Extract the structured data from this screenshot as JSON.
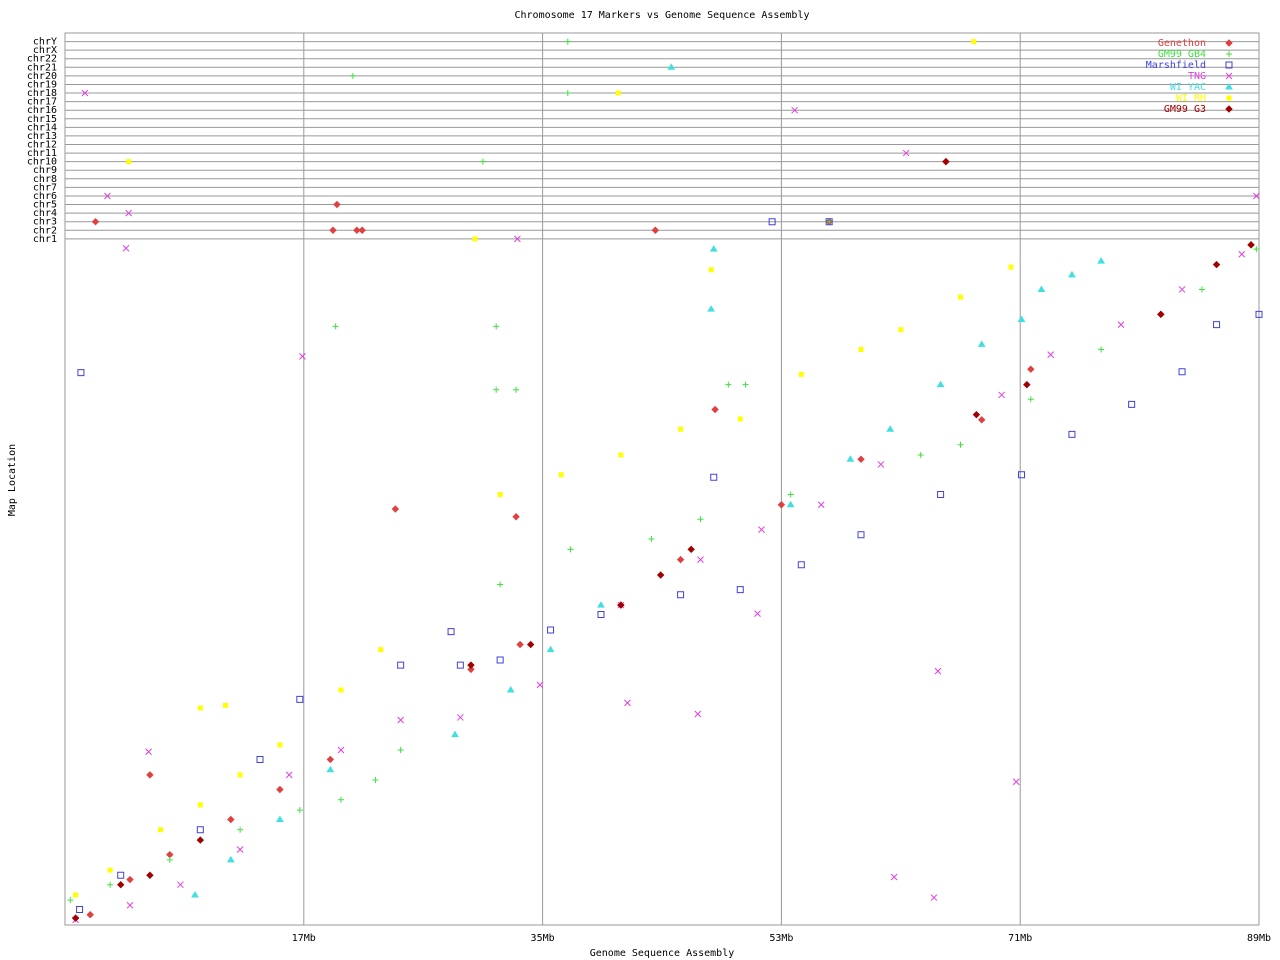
{
  "chart_data": {
    "type": "scatter",
    "title": "Chromosome 17 Markers vs Genome Sequence Assembly",
    "x_label": "Genome Sequence Assembly",
    "y_label": "Map Location",
    "xlim": [
      -1,
      89
    ],
    "ylim": [
      0,
      104
    ],
    "xticks": [
      {
        "value": 17,
        "label": "17Mb"
      },
      {
        "value": 35,
        "label": "35Mb"
      },
      {
        "value": 53,
        "label": "53Mb"
      },
      {
        "value": 71,
        "label": "71Mb"
      },
      {
        "value": 89,
        "label": "89Mb"
      }
    ],
    "yticks": [
      {
        "value": 80,
        "label": "chr1"
      },
      {
        "value": 81,
        "label": "chr2"
      },
      {
        "value": 82,
        "label": "chr3"
      },
      {
        "value": 83,
        "label": "chr4"
      },
      {
        "value": 84,
        "label": "chr5"
      },
      {
        "value": 85,
        "label": "chr6"
      },
      {
        "value": 86,
        "label": "chr7"
      },
      {
        "value": 87,
        "label": "chr8"
      },
      {
        "value": 88,
        "label": "chr9"
      },
      {
        "value": 89,
        "label": "chr10"
      },
      {
        "value": 90,
        "label": "chr11"
      },
      {
        "value": 91,
        "label": "chr12"
      },
      {
        "value": 92,
        "label": "chr13"
      },
      {
        "value": 93,
        "label": "chr14"
      },
      {
        "value": 94,
        "label": "chr15"
      },
      {
        "value": 95,
        "label": "chr16"
      },
      {
        "value": 96,
        "label": "chr17"
      },
      {
        "value": 97,
        "label": "chr18"
      },
      {
        "value": 98,
        "label": "chr19"
      },
      {
        "value": 99,
        "label": "chr20"
      },
      {
        "value": 100,
        "label": "chr21"
      },
      {
        "value": 101,
        "label": "chr22"
      },
      {
        "value": 102,
        "label": "chrX"
      },
      {
        "value": 103,
        "label": "chrY"
      }
    ],
    "grid": true,
    "legend": "upper right",
    "series": [
      {
        "name": "Genethon",
        "color": "#e04040",
        "marker": "diamond",
        "x": [
          1.3,
          19.5,
          19.2,
          21,
          21.4,
          43.5,
          56.6,
          65.4,
          0.9,
          3.9,
          6.9,
          11.5,
          15.2,
          19,
          29.6,
          33.3,
          40.9,
          45.4,
          53,
          59,
          68.1,
          71.8,
          81.6,
          88.4,
          5.4,
          23.9,
          33,
          48
        ],
        "values": [
          82,
          84,
          81,
          81,
          81,
          81,
          82,
          89,
          1.2,
          5.3,
          8.2,
          12.3,
          15.8,
          19.3,
          29.8,
          32.7,
          37.3,
          42.6,
          49,
          54.3,
          58.9,
          64.8,
          71.2,
          79.3,
          17.5,
          48.5,
          47.6,
          60.1
        ]
      },
      {
        "name": "GM99 GB4",
        "color": "#40e040",
        "marker": "plus",
        "x": [
          36.9,
          20.7,
          36.9,
          30.5,
          56.6,
          -0.6,
          2.4,
          6.9,
          12.2,
          16.7,
          19.8,
          22.4,
          24.3,
          31.8,
          37.1,
          43.2,
          46.9,
          53.7,
          63.5,
          66.5,
          71.8,
          77.1,
          84.7,
          88.8,
          19.4,
          31.5,
          31.5,
          33,
          49,
          50.3
        ],
        "values": [
          103,
          99,
          97,
          89,
          82,
          2.9,
          4.7,
          7.6,
          11.1,
          13.4,
          14.6,
          16.9,
          20.4,
          39.7,
          43.8,
          45,
          47.3,
          50.2,
          54.8,
          56,
          61.3,
          67.1,
          74.1,
          78.8,
          69.8,
          69.8,
          62.4,
          62.4,
          63,
          63
        ]
      },
      {
        "name": "Marshfield",
        "color": "#4040e0",
        "marker": "square",
        "x": [
          52.3,
          56.6,
          0.1,
          3.2,
          9.2,
          13.7,
          16.7,
          24.3,
          28.8,
          31.8,
          35.6,
          39.4,
          45.4,
          49.9,
          54.5,
          59,
          65,
          71.1,
          74.9,
          79.4,
          83.2,
          85.8,
          89,
          0.2,
          47.9,
          28.1
        ],
        "values": [
          82,
          82,
          1.8,
          5.8,
          11.1,
          19.3,
          26.3,
          30.3,
          30.3,
          30.9,
          34.4,
          36.2,
          38.5,
          39.1,
          42,
          45.5,
          50.2,
          52.5,
          57.2,
          60.7,
          64.5,
          70,
          71.2,
          64.4,
          52.2,
          34.2
        ]
      },
      {
        "name": "TNG",
        "color": "#e040e0",
        "marker": "x",
        "x": [
          0.5,
          2.2,
          3.8,
          3.6,
          33.1,
          54,
          62.4,
          88.8,
          -0.2,
          3.9,
          7.7,
          12.2,
          15.9,
          19.8,
          24.3,
          28.8,
          34.8,
          40.9,
          46.9,
          51.5,
          56,
          60.5,
          69.6,
          73.3,
          78.6,
          83.2,
          87.7,
          16.9,
          5.3,
          41.4,
          46.7,
          51.2,
          64.8,
          61.5,
          64.5,
          70.7
        ],
        "values": [
          97,
          85,
          83,
          78.9,
          80,
          95,
          90,
          85,
          0.6,
          2.3,
          4.7,
          8.8,
          17.5,
          20.4,
          23.9,
          24.2,
          28,
          37.3,
          42.6,
          46.1,
          49,
          53.7,
          61.8,
          66.5,
          70,
          74.1,
          78.2,
          66.3,
          20.2,
          25.9,
          24.6,
          36.3,
          29.6,
          5.6,
          3.2,
          16.7
        ]
      },
      {
        "name": "WI YAC",
        "color": "#40e0e0",
        "marker": "triangle",
        "x": [
          44.7,
          8.8,
          11.5,
          15.2,
          19,
          28.4,
          32.6,
          35.6,
          39.4,
          53.7,
          58.2,
          61.2,
          65,
          68.1,
          71.1,
          72.6,
          74.9,
          77.1,
          47.7,
          47.9
        ],
        "values": [
          100,
          3.5,
          7.6,
          12.3,
          18.1,
          22.2,
          27.4,
          32.1,
          37.3,
          49,
          54.3,
          57.8,
          63,
          67.7,
          70.6,
          74.1,
          75.8,
          77.4,
          71.8,
          78.8
        ]
      },
      {
        "name": "WI RH",
        "color": "#ffff00",
        "marker": "star",
        "x": [
          3.8,
          40.7,
          67.5,
          29.9,
          -0.2,
          2.4,
          6.2,
          9.2,
          12.2,
          15.2,
          19.8,
          22.8,
          31.8,
          36.4,
          40.9,
          45.4,
          49.9,
          54.5,
          59,
          62,
          66.5,
          70.3,
          47.7,
          9.2,
          11.1
        ],
        "values": [
          89,
          97,
          103,
          80,
          3.5,
          6.4,
          11.1,
          14,
          17.5,
          21,
          27.4,
          32.1,
          50.2,
          52.5,
          54.8,
          57.8,
          59,
          64.2,
          67.1,
          69.4,
          73.2,
          76.7,
          76.4,
          25.3,
          25.6
        ]
      },
      {
        "name": "GM99 G3",
        "color": "#a00000",
        "marker": "diamond",
        "x": [
          -0.2,
          3.2,
          5.4,
          9.2,
          29.6,
          34.1,
          40.9,
          43.9,
          46.2,
          67.7,
          71.5,
          81.6,
          85.8,
          88.4,
          65.4
        ],
        "values": [
          0.8,
          4.7,
          5.8,
          9.9,
          30.3,
          32.7,
          37.3,
          40.8,
          43.8,
          59.5,
          63,
          71.2,
          77,
          79.3,
          89
        ]
      }
    ]
  }
}
